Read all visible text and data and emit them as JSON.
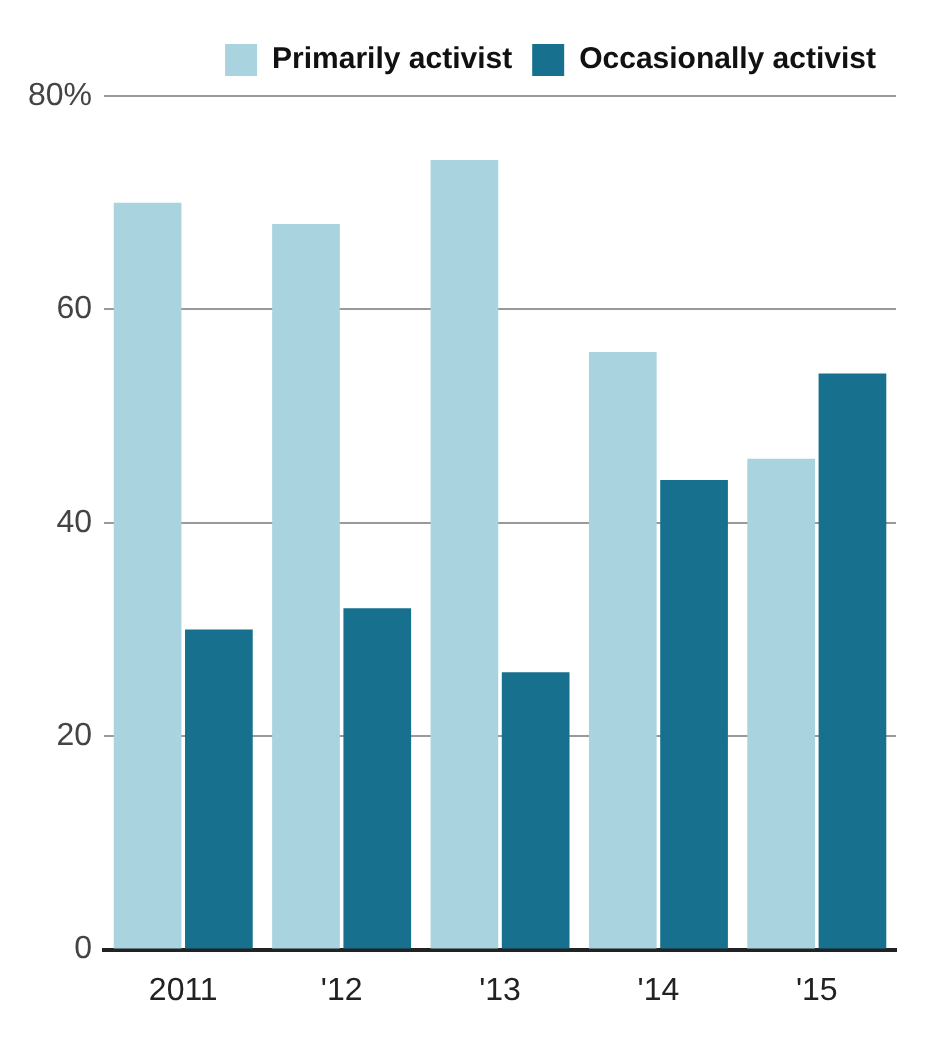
{
  "chart_data": {
    "type": "bar",
    "categories": [
      "2011",
      "'12",
      "'13",
      "'14",
      "'15"
    ],
    "series": [
      {
        "name": "Primarily activist",
        "color": "#a8d3df",
        "values": [
          70,
          68,
          74,
          56,
          46
        ]
      },
      {
        "name": "Occasionally activist",
        "color": "#17718e",
        "values": [
          30,
          32,
          26,
          44,
          54
        ]
      }
    ],
    "ylim": [
      0,
      80
    ],
    "yticks": [
      0,
      20,
      40,
      60,
      {
        "value": 80,
        "label": "80%"
      }
    ],
    "grid": "y",
    "legend": "top right"
  }
}
